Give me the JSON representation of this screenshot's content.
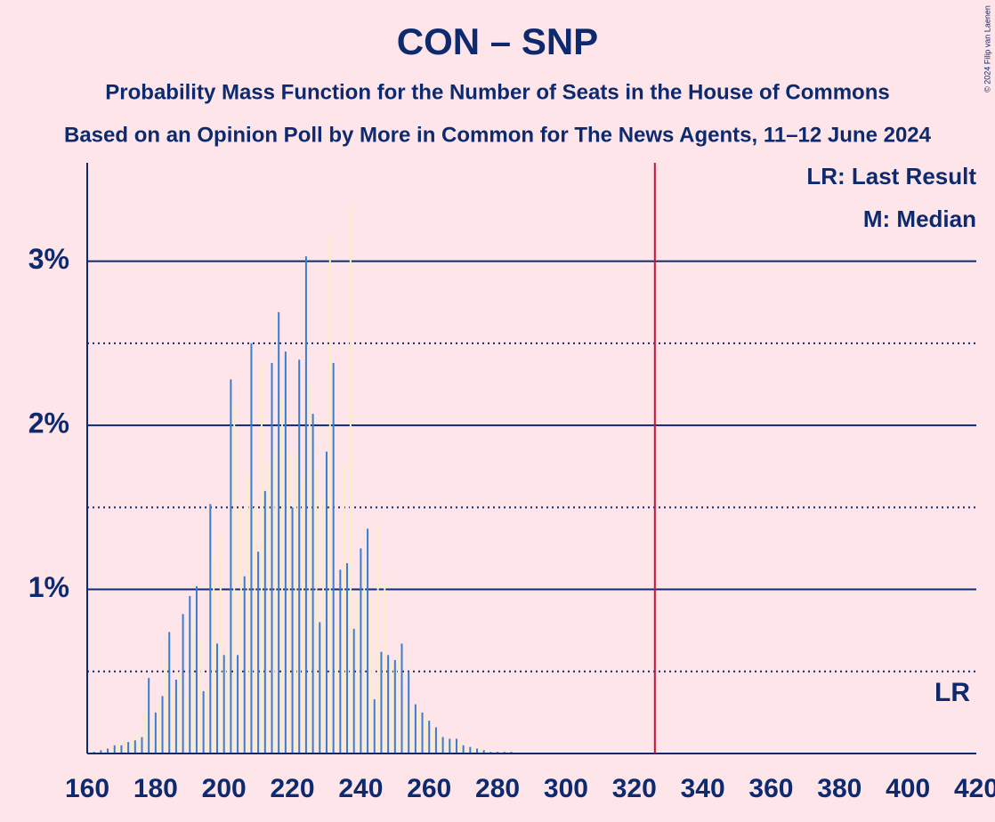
{
  "chart_data": {
    "type": "bar",
    "title": "CON – SNP",
    "subtitle": "Probability Mass Function for the Number of Seats in the House of Commons",
    "subtitle2": "Based on an Opinion Poll by More in Common for The News Agents, 11–12 June 2024",
    "copyright": "© 2024 Filip van Laenen",
    "legend": [
      "LR: Last Result",
      "M: Median"
    ],
    "last_result": 326,
    "last_result_label": "LR",
    "colors": [
      "#3a7dcf",
      "#f8eec0"
    ],
    "x": [
      160,
      161,
      162,
      163,
      164,
      165,
      166,
      167,
      168,
      169,
      170,
      171,
      172,
      173,
      174,
      175,
      176,
      177,
      178,
      179,
      180,
      181,
      182,
      183,
      184,
      185,
      186,
      187,
      188,
      189,
      190,
      191,
      192,
      193,
      194,
      195,
      196,
      197,
      198,
      199,
      200,
      201,
      202,
      203,
      204,
      205,
      206,
      207,
      208,
      209,
      210,
      211,
      212,
      213,
      214,
      215,
      216,
      217,
      218,
      219,
      220,
      221,
      222,
      223,
      224,
      225,
      226,
      227,
      228,
      229,
      230,
      231,
      232,
      233,
      234,
      235,
      236,
      237,
      238,
      239,
      240,
      241,
      242,
      243,
      244,
      245,
      246,
      247,
      248,
      249,
      250,
      251,
      252,
      253,
      254,
      255,
      256,
      257,
      258,
      259,
      260,
      261,
      262,
      263,
      264,
      265,
      266,
      267,
      268,
      269,
      270,
      271,
      272,
      273,
      274,
      275,
      276,
      277,
      278,
      279,
      280,
      281,
      282,
      283,
      284,
      285
    ],
    "values": [
      0.01,
      0.01,
      0.01,
      0.02,
      0.02,
      0.02,
      0.03,
      0.04,
      0.05,
      0.06,
      0.05,
      0.08,
      0.07,
      0.1,
      0.08,
      0.12,
      0.1,
      0.25,
      0.46,
      0.17,
      0.25,
      0.3,
      0.35,
      0.55,
      0.74,
      0.4,
      0.45,
      0.5,
      0.85,
      0.33,
      0.96,
      0.8,
      1.02,
      0.7,
      0.38,
      0.4,
      1.52,
      1.2,
      0.67,
      1.33,
      0.6,
      0.62,
      2.28,
      2.13,
      0.6,
      1.5,
      1.08,
      1.7,
      2.5,
      1.5,
      1.23,
      2.38,
      1.6,
      1.76,
      2.38,
      1.85,
      2.69,
      2.18,
      2.45,
      1.84,
      1.5,
      1.82,
      2.4,
      1.68,
      3.03,
      2.25,
      2.07,
      1.73,
      0.8,
      1.57,
      1.84,
      3.17,
      2.38,
      0.77,
      1.12,
      1.75,
      1.16,
      3.33,
      0.76,
      0.95,
      1.25,
      1.17,
      1.37,
      0.95,
      0.33,
      1.4,
      0.62,
      1.05,
      0.6,
      0.55,
      0.57,
      0.6,
      0.67,
      0.32,
      0.5,
      0.28,
      0.3,
      0.27,
      0.25,
      0.22,
      0.2,
      0.14,
      0.16,
      0.12,
      0.1,
      0.1,
      0.09,
      0.08,
      0.09,
      0.06,
      0.05,
      0.04,
      0.04,
      0.03,
      0.03,
      0.02,
      0.02,
      0.02,
      0.01,
      0.01,
      0.01,
      0.01,
      0.01,
      0.01,
      0.01,
      0.01
    ],
    "xlim": [
      160,
      420
    ],
    "xticks": [
      160,
      180,
      200,
      220,
      240,
      260,
      280,
      300,
      320,
      340,
      360,
      380,
      400,
      420
    ],
    "ylim": [
      0,
      3.6
    ],
    "yticks": [
      {
        "value": 1,
        "label": "1%"
      },
      {
        "value": 2,
        "label": "2%"
      },
      {
        "value": 3,
        "label": "3%"
      }
    ],
    "minor_yticks": [
      0.5,
      1.5,
      2.5
    ]
  }
}
